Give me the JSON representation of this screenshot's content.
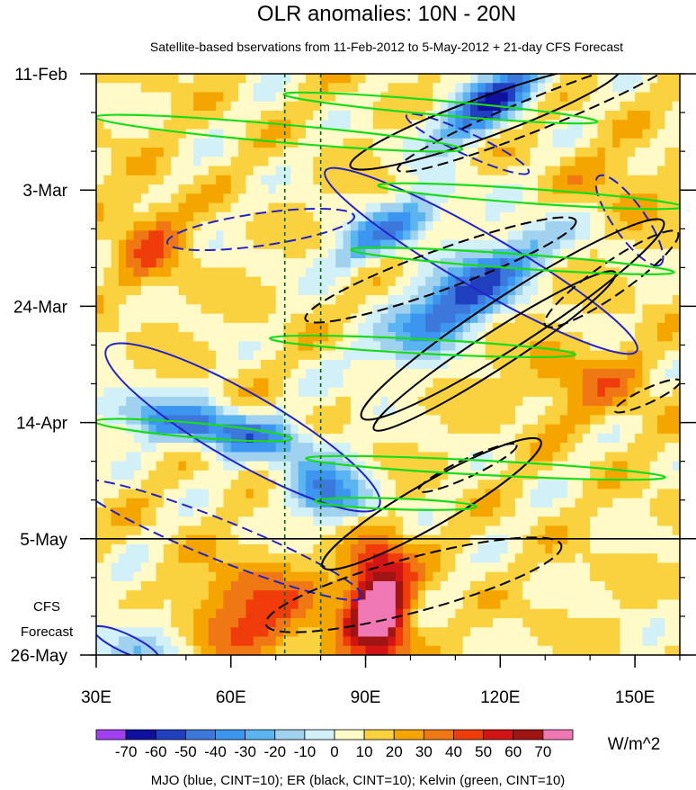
{
  "chart_data": {
    "type": "heatmap",
    "title": "OLR anomalies: 10N - 20N",
    "subtitle": "Satellite-based bservations from 11-Feb-2012 to 5-May-2012 + 21-day CFS Forecast",
    "x_axis": {
      "range": [
        30,
        160
      ],
      "ticks": [
        {
          "value": 30,
          "label": "30E"
        },
        {
          "value": 60,
          "label": "60E"
        },
        {
          "value": 90,
          "label": "90E"
        },
        {
          "value": 120,
          "label": "120E"
        },
        {
          "value": 150,
          "label": "150E"
        }
      ]
    },
    "y_axis": {
      "range_days": [
        0,
        105
      ],
      "ticks": [
        {
          "day": 0,
          "label": "11-Feb"
        },
        {
          "day": 21,
          "label": "3-Mar"
        },
        {
          "day": 42,
          "label": "24-Mar"
        },
        {
          "day": 63,
          "label": "14-Apr"
        },
        {
          "day": 84,
          "label": "5-May"
        },
        {
          "day": 105,
          "label": "26-May"
        }
      ]
    },
    "forecast_start_day": 84,
    "forecast_label": [
      "CFS",
      "Forecast"
    ],
    "reference_longitudes": [
      72,
      80
    ],
    "colorbar": {
      "levels": [
        -70,
        -60,
        -50,
        -40,
        -30,
        -20,
        -10,
        0,
        10,
        20,
        30,
        40,
        50,
        60,
        70
      ],
      "level_labels": [
        "-70",
        "-60",
        "-50",
        "-40",
        "-30",
        "-20",
        "-10",
        "0",
        "10",
        "20",
        "30",
        "40",
        "50",
        "60",
        "70"
      ],
      "colors": [
        "#a040f0",
        "#1010a0",
        "#2040c0",
        "#3c78dc",
        "#3c96f0",
        "#5ab4f0",
        "#a0d2f0",
        "#d2f0f8",
        "#fffac8",
        "#fad240",
        "#f5a500",
        "#f07814",
        "#f03c0a",
        "#d21414",
        "#a01414",
        "#f078b4"
      ],
      "units": "W/m^2"
    },
    "contours": {
      "MJO": {
        "color": "#2323c8",
        "cint": 10
      },
      "ER": {
        "color": "#000000",
        "cint": 10
      },
      "Kelvin": {
        "color": "#19dc19",
        "cint": 10
      }
    },
    "caption": "MJO (blue, CINT=10); ER (black, CINT=10); Kelvin (green, CINT=10)"
  }
}
